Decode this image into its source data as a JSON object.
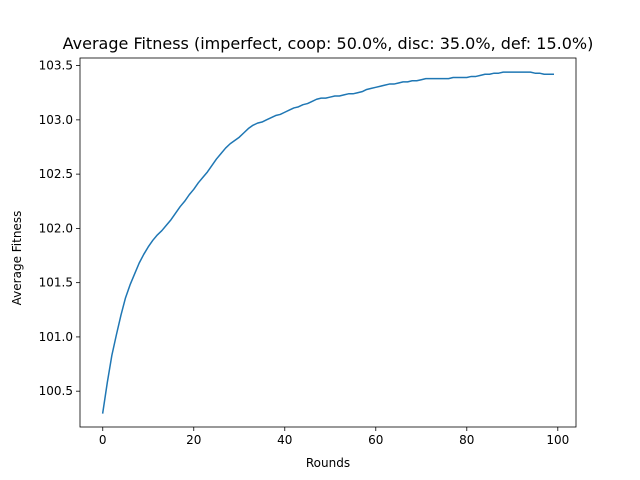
{
  "chart_data": {
    "type": "line",
    "title": "Average Fitness (imperfect, coop: 50.0%, disc: 35.0%, def: 15.0%)",
    "xlabel": "Rounds",
    "ylabel": "Average Fitness",
    "xlim": [
      -5,
      104
    ],
    "ylim": [
      100.17,
      103.57
    ],
    "xticks": [
      0,
      20,
      40,
      60,
      80,
      100
    ],
    "xtick_labels": [
      "0",
      "20",
      "40",
      "60",
      "80",
      "100"
    ],
    "yticks": [
      100.5,
      101.0,
      101.5,
      102.0,
      102.5,
      103.0,
      103.5
    ],
    "ytick_labels": [
      "100.5",
      "101.0",
      "101.5",
      "102.0",
      "102.5",
      "103.0",
      "103.5"
    ],
    "grid": false,
    "legend": "none",
    "series": [
      {
        "color": "#1f77b4",
        "x": [
          0,
          1,
          2,
          3,
          4,
          5,
          6,
          7,
          8,
          9,
          10,
          11,
          12,
          13,
          14,
          15,
          16,
          17,
          18,
          19,
          20,
          21,
          22,
          23,
          24,
          25,
          26,
          27,
          28,
          29,
          30,
          31,
          32,
          33,
          34,
          35,
          36,
          37,
          38,
          39,
          40,
          41,
          42,
          43,
          44,
          45,
          46,
          47,
          48,
          49,
          50,
          51,
          52,
          53,
          54,
          55,
          56,
          57,
          58,
          59,
          60,
          61,
          62,
          63,
          64,
          65,
          66,
          67,
          68,
          69,
          70,
          71,
          72,
          73,
          74,
          75,
          76,
          77,
          78,
          79,
          80,
          81,
          82,
          83,
          84,
          85,
          86,
          87,
          88,
          89,
          90,
          91,
          92,
          93,
          94,
          95,
          96,
          97,
          98,
          99
        ],
        "y": [
          100.3,
          100.58,
          100.83,
          101.02,
          101.2,
          101.36,
          101.48,
          101.58,
          101.68,
          101.76,
          101.83,
          101.89,
          101.94,
          101.98,
          102.03,
          102.08,
          102.14,
          102.2,
          102.25,
          102.31,
          102.36,
          102.42,
          102.47,
          102.52,
          102.58,
          102.64,
          102.69,
          102.74,
          102.78,
          102.81,
          102.84,
          102.88,
          102.92,
          102.95,
          102.97,
          102.98,
          103.0,
          103.02,
          103.04,
          103.05,
          103.07,
          103.09,
          103.11,
          103.12,
          103.14,
          103.15,
          103.17,
          103.19,
          103.2,
          103.2,
          103.21,
          103.22,
          103.22,
          103.23,
          103.24,
          103.24,
          103.25,
          103.26,
          103.28,
          103.29,
          103.3,
          103.31,
          103.32,
          103.33,
          103.33,
          103.34,
          103.35,
          103.35,
          103.36,
          103.36,
          103.37,
          103.38,
          103.38,
          103.38,
          103.38,
          103.38,
          103.38,
          103.39,
          103.39,
          103.39,
          103.39,
          103.4,
          103.4,
          103.41,
          103.42,
          103.42,
          103.43,
          103.43,
          103.44,
          103.44,
          103.44,
          103.44,
          103.44,
          103.44,
          103.44,
          103.43,
          103.43,
          103.42,
          103.42,
          103.42
        ]
      }
    ]
  }
}
